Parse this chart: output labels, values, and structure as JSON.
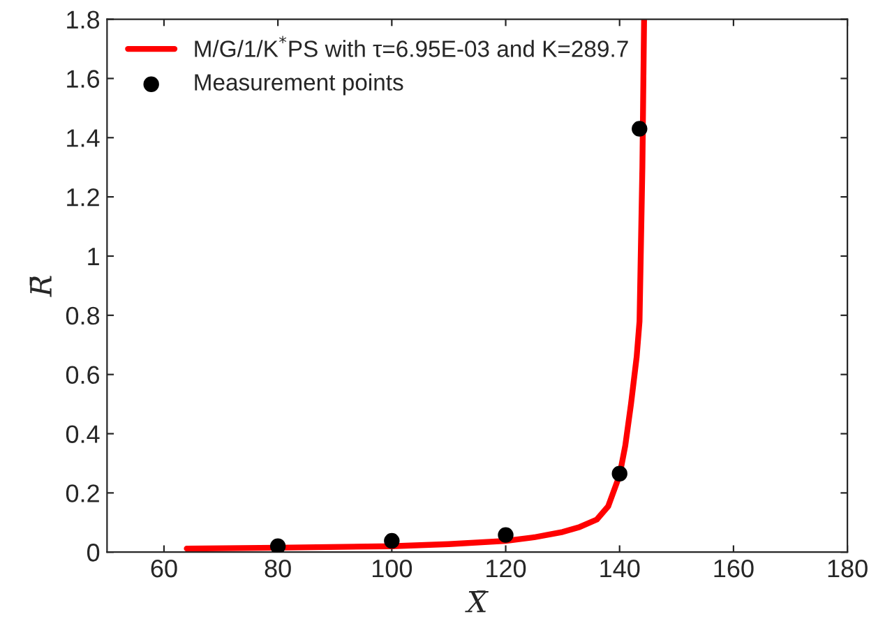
{
  "chart_data": {
    "type": "line",
    "xlabel": "X̄",
    "ylabel": "R̄",
    "xlim": [
      50,
      180
    ],
    "xticks": [
      60,
      80,
      100,
      120,
      140,
      160,
      180
    ],
    "ylim": [
      0,
      1.8
    ],
    "yticks": [
      0,
      0.2,
      0.4,
      0.6,
      0.8,
      1,
      1.2,
      1.4,
      1.6,
      1.8
    ],
    "grid": false,
    "legend": "top left",
    "series": [
      {
        "name": "M/G/1/K$^{*}$PS with τ=6.95E-03 and K=289.7",
        "color": "#ff0000",
        "marker": "none",
        "line_style": "solid",
        "x": [
          64,
          80,
          100,
          110,
          120,
          125,
          130,
          133,
          136,
          138,
          140,
          141,
          142,
          143,
          143.5,
          144,
          144.3
        ],
        "values": [
          0.012,
          0.015,
          0.02,
          0.027,
          0.038,
          0.05,
          0.068,
          0.085,
          0.11,
          0.155,
          0.26,
          0.36,
          0.5,
          0.66,
          0.78,
          1.3,
          1.8
        ]
      },
      {
        "name": "Measurement points",
        "type": "scatter",
        "color": "#000000",
        "marker": "circle",
        "x": [
          80,
          100,
          120,
          140,
          143.5
        ],
        "values": [
          0.02,
          0.038,
          0.058,
          0.265,
          1.43
        ]
      }
    ]
  }
}
